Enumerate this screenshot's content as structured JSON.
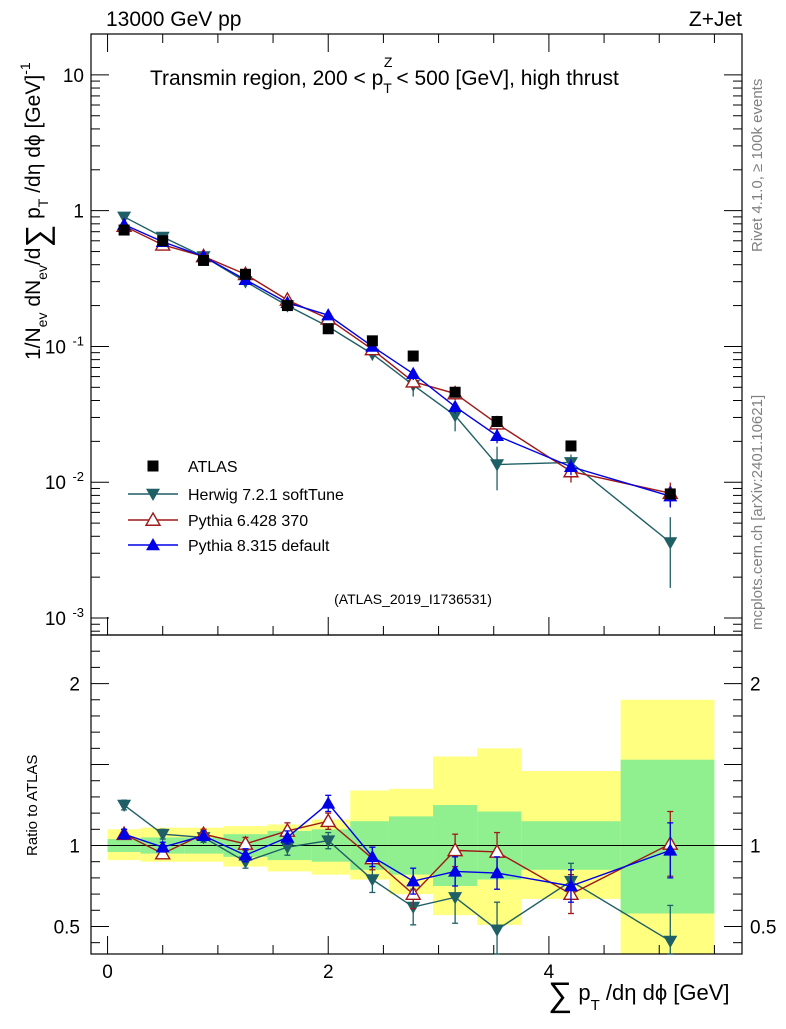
{
  "header": {
    "left": "13000 GeV pp",
    "right": "Z+Jet"
  },
  "side_labels": {
    "rivet": "Rivet 4.1.0, ≥ 100k events",
    "mcplots": "mcplots.cern.ch [arXiv:2401.10621]"
  },
  "chart_data": {
    "type": "line",
    "title": "Transmin region, 200 < p_T^Z < 500 [GeV], high thrust",
    "analysis_tag": "(ATLAS_2019_I1736531)",
    "xlabel": "∑ p_T/dη dϕ [GeV]",
    "ylabel": "1/N_ev dN_ev/d∑ p_T/dη dϕ [GeV]^-1",
    "ratio_ylabel": "Ratio to ATLAS",
    "xlim": [
      -0.15,
      5.75
    ],
    "ylim": [
      0.00075,
      20
    ],
    "yscale": "log",
    "ratio_ylim": [
      0.33,
      2.3
    ],
    "x_ticks": [
      "0",
      "2",
      "4"
    ],
    "y_ticks": [
      "10^-3",
      "10^-2",
      "10^-1",
      "1",
      "10"
    ],
    "ratio_ticks": [
      "0.5",
      "1",
      "2"
    ],
    "x_edges": [
      0,
      0.3,
      0.7,
      1.05,
      1.45,
      1.85,
      2.2,
      2.55,
      2.95,
      3.35,
      3.75,
      4.65,
      5.5
    ],
    "x": [
      0.15,
      0.5,
      0.87,
      1.25,
      1.63,
      2.0,
      2.4,
      2.77,
      3.15,
      3.53,
      4.2,
      5.1
    ],
    "series": [
      {
        "name": "ATLAS",
        "color": "#000000",
        "marker": "square",
        "values": [
          0.72,
          0.6,
          0.43,
          0.34,
          0.2,
          0.135,
          0.11,
          0.085,
          0.046,
          0.028,
          0.0185,
          0.0082
        ],
        "ratio": [
          1,
          1,
          1,
          1,
          1,
          1,
          1,
          1,
          1,
          1,
          1,
          1
        ],
        "band_inner": [
          [
            0.96,
            1.04
          ],
          [
            0.95,
            1.05
          ],
          [
            0.95,
            1.05
          ],
          [
            0.93,
            1.07
          ],
          [
            0.91,
            1.09
          ],
          [
            0.9,
            1.1
          ],
          [
            0.85,
            1.15
          ],
          [
            0.82,
            1.18
          ],
          [
            0.75,
            1.25
          ],
          [
            0.79,
            1.21
          ],
          [
            0.85,
            1.15
          ],
          [
            0.58,
            1.53
          ]
        ],
        "band_outer": [
          [
            0.91,
            1.1
          ],
          [
            0.9,
            1.11
          ],
          [
            0.9,
            1.11
          ],
          [
            0.87,
            1.12
          ],
          [
            0.84,
            1.13
          ],
          [
            0.82,
            1.16
          ],
          [
            0.79,
            1.34
          ],
          [
            0.7,
            1.35
          ],
          [
            0.57,
            1.55
          ],
          [
            0.51,
            1.6
          ],
          [
            0.67,
            1.46
          ],
          [
            0.33,
            1.9
          ]
        ]
      },
      {
        "name": "Herwig 7.2.1 softTune",
        "color": "#1f5f66",
        "marker": "triangle-down",
        "values": [
          0.9,
          0.64,
          0.46,
          0.3,
          0.2,
          0.14,
          0.088,
          0.052,
          0.031,
          0.0135,
          0.014,
          0.0036
        ],
        "ratio": [
          1.25,
          1.07,
          1.05,
          0.9,
          0.99,
          1.03,
          0.79,
          0.62,
          0.68,
          0.48,
          0.78,
          0.41
        ],
        "err": [
          0.03,
          0.03,
          0.03,
          0.04,
          0.05,
          0.05,
          0.08,
          0.11,
          0.16,
          0.17,
          0.11,
          0.22
        ]
      },
      {
        "name": "Pythia 6.428 370",
        "color": "#a01818",
        "marker": "triangle-open",
        "values": [
          0.77,
          0.56,
          0.46,
          0.34,
          0.22,
          0.16,
          0.095,
          0.055,
          0.045,
          0.027,
          0.012,
          0.0083
        ],
        "ratio": [
          1.07,
          0.95,
          1.07,
          1.01,
          1.09,
          1.15,
          0.92,
          0.7,
          0.97,
          0.96,
          0.7,
          1.01
        ],
        "err": [
          0.03,
          0.03,
          0.03,
          0.04,
          0.05,
          0.05,
          0.07,
          0.09,
          0.1,
          0.12,
          0.12,
          0.2
        ]
      },
      {
        "name": "Pythia 8.315 default",
        "color": "#0000e6",
        "marker": "triangle",
        "values": [
          0.79,
          0.59,
          0.46,
          0.31,
          0.21,
          0.17,
          0.1,
          0.063,
          0.036,
          0.022,
          0.013,
          0.0079
        ],
        "ratio": [
          1.07,
          0.99,
          1.06,
          0.94,
          1.05,
          1.26,
          0.93,
          0.78,
          0.84,
          0.83,
          0.75,
          0.97
        ],
        "err": [
          0.03,
          0.03,
          0.03,
          0.04,
          0.04,
          0.05,
          0.06,
          0.08,
          0.09,
          0.1,
          0.1,
          0.17
        ]
      }
    ]
  }
}
